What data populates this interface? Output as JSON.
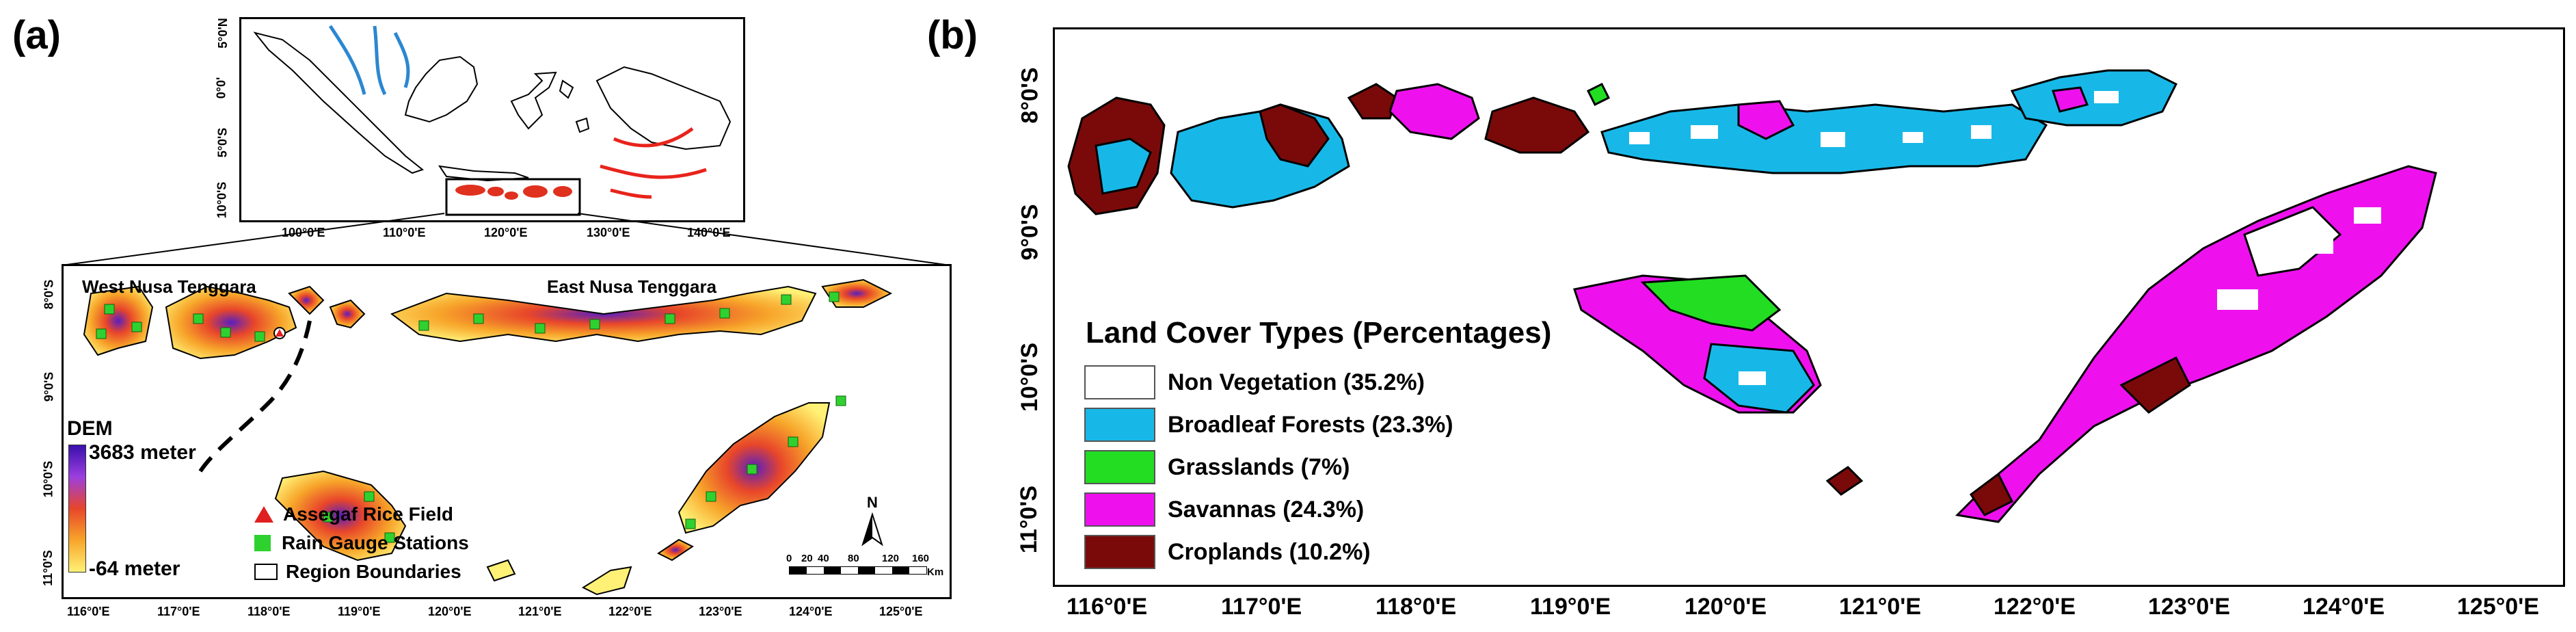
{
  "panel_a": {
    "label": "(a)",
    "inset_lat_ticks": [
      "5°0'N",
      "0°0'",
      "5°0'S",
      "10°0'S"
    ],
    "inset_lon_ticks": [
      "100°0'E",
      "110°0'E",
      "120°0'E",
      "130°0'E",
      "140°0'E"
    ],
    "region_west": "West Nusa Tenggara",
    "region_east": "East Nusa Tenggara",
    "lat_ticks": [
      "8°0'S",
      "9°0'S",
      "10°0'S",
      "11°0'S"
    ],
    "lon_ticks": [
      "116°0'E",
      "117°0'E",
      "118°0'E",
      "119°0'E",
      "120°0'E",
      "121°0'E",
      "122°0'E",
      "123°0'E",
      "124°0'E",
      "125°0'E"
    ],
    "dem_title": "DEM",
    "dem_max": "3683 meter",
    "dem_min": "-64 meter",
    "legend_rice": "Assegaf Rice Field",
    "legend_gauge": "Rain Gauge Stations",
    "legend_boundary": "Region Boundaries",
    "north": "N",
    "scale_labels": [
      "0",
      "20",
      "40",
      "80",
      "120",
      "160"
    ],
    "scale_unit": "Km",
    "colors": {
      "dem_high": "#5a1fbf",
      "dem_mid": "#e8462a",
      "dem_low": "#fff176",
      "gauge": "#2fd12f",
      "rice": "#e02020"
    }
  },
  "panel_b": {
    "label": "(b)",
    "lat_ticks": [
      "8°0'S",
      "9°0'S",
      "10°0'S",
      "11°0'S"
    ],
    "lon_ticks": [
      "116°0'E",
      "117°0'E",
      "118°0'E",
      "119°0'E",
      "120°0'E",
      "121°0'E",
      "122°0'E",
      "123°0'E",
      "124°0'E",
      "125°0'E"
    ],
    "legend_title": "Land Cover Types (Percentages)",
    "legend_items": [
      {
        "label": "Non Vegetation (35.2%)",
        "color": "#ffffff"
      },
      {
        "label": "Broadleaf Forests (23.3%)",
        "color": "#17b8e8"
      },
      {
        "label": "Grasslands (7%)",
        "color": "#22dd22"
      },
      {
        "label": "Savannas (24.3%)",
        "color": "#ee11ee"
      },
      {
        "label": "Croplands (10.2%)",
        "color": "#7a0a0a"
      }
    ]
  }
}
